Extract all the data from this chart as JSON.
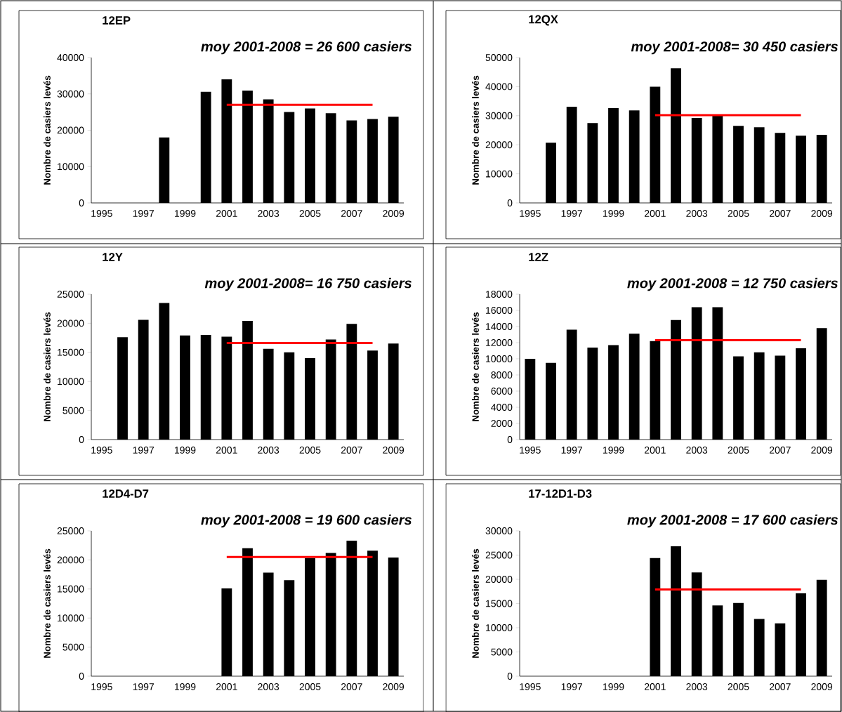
{
  "chart_data": [
    {
      "type": "bar",
      "title": "12EP",
      "ylabel": "Nombre de casiers levés",
      "annotations": [
        "moy 2001-2008 = 26 600 casiers"
      ],
      "categories": [
        "1995",
        null,
        "1997",
        null,
        "1999",
        null,
        "2001",
        null,
        "2003",
        null,
        "2005",
        null,
        "2007",
        null,
        "2009"
      ],
      "ylim": [
        0,
        40000
      ],
      "yticks": [
        0,
        10000,
        20000,
        30000,
        40000
      ],
      "series": [
        {
          "color": "#000000",
          "values": [
            null,
            null,
            null,
            18000,
            null,
            30600,
            34000,
            30900,
            28500,
            25000,
            26000,
            24700,
            22700,
            23100,
            23700
          ]
        },
        {
          "type": "line",
          "color": "#ff0000",
          "values": [
            null,
            null,
            null,
            null,
            null,
            null,
            27000,
            27000,
            27000,
            27000,
            27000,
            27000,
            27000,
            27000,
            null
          ]
        }
      ]
    },
    {
      "type": "bar",
      "title": "12QX",
      "ylabel": "Nombre de casiers levés",
      "annotations": [
        "moy 2001-2008= 30 450 casiers"
      ],
      "categories": [
        "1995",
        null,
        "1997",
        null,
        "1999",
        null,
        "2001",
        null,
        "2003",
        null,
        "2005",
        null,
        "2007",
        null,
        "2009"
      ],
      "ylim": [
        0,
        50000
      ],
      "yticks": [
        0,
        10000,
        20000,
        30000,
        40000,
        50000
      ],
      "series": [
        {
          "color": "#000000",
          "values": [
            null,
            20700,
            33100,
            27500,
            32600,
            31800,
            40000,
            46300,
            29200,
            30000,
            26500,
            26000,
            24100,
            23100,
            23400
          ]
        },
        {
          "type": "line",
          "color": "#ff0000",
          "values": [
            null,
            null,
            null,
            null,
            null,
            null,
            30200,
            30200,
            30200,
            30200,
            30200,
            30200,
            30200,
            30200,
            null
          ]
        }
      ]
    },
    {
      "type": "bar",
      "title": "12Y",
      "ylabel": "Nombre de casiers levés",
      "annotations": [
        "moy 2001-2008= 16 750 casiers"
      ],
      "categories": [
        "1995",
        null,
        "1997",
        null,
        "1999",
        null,
        "2001",
        null,
        "2003",
        null,
        "2005",
        null,
        "2007",
        null,
        "2009"
      ],
      "ylim": [
        0,
        25000
      ],
      "yticks": [
        0,
        5000,
        10000,
        15000,
        20000,
        25000
      ],
      "series": [
        {
          "color": "#000000",
          "values": [
            null,
            17600,
            20600,
            23500,
            17900,
            18000,
            17700,
            20400,
            15600,
            15000,
            14000,
            17200,
            19900,
            15300,
            16500
          ]
        },
        {
          "type": "line",
          "color": "#ff0000",
          "values": [
            null,
            null,
            null,
            null,
            null,
            null,
            16600,
            16600,
            16600,
            16600,
            16600,
            16600,
            16600,
            16600,
            null
          ]
        }
      ]
    },
    {
      "type": "bar",
      "title": "12Z",
      "ylabel": "Nombre de casiers levés",
      "annotations": [
        "moy 2001-2008 = 12 750 casiers"
      ],
      "categories": [
        "1995",
        null,
        "1997",
        null,
        "1999",
        null,
        "2001",
        null,
        "2003",
        null,
        "2005",
        null,
        "2007",
        null,
        "2009"
      ],
      "ylim": [
        0,
        18000
      ],
      "yticks": [
        0,
        2000,
        4000,
        6000,
        8000,
        10000,
        12000,
        14000,
        16000,
        18000
      ],
      "series": [
        {
          "color": "#000000",
          "values": [
            10000,
            9500,
            13600,
            11400,
            11700,
            13100,
            12200,
            14800,
            16400,
            16400,
            10300,
            10800,
            10400,
            11300,
            13800
          ]
        },
        {
          "type": "line",
          "color": "#ff0000",
          "values": [
            null,
            null,
            null,
            null,
            null,
            null,
            12300,
            12300,
            12300,
            12300,
            12300,
            12300,
            12300,
            12300,
            null
          ]
        }
      ]
    },
    {
      "type": "bar",
      "title": "12D4-D7",
      "ylabel": "Nombre de casiers levés",
      "annotations": [
        "moy 2001-2008 = 19 600 casiers"
      ],
      "categories": [
        "1995",
        null,
        "1997",
        null,
        "1999",
        null,
        "2001",
        null,
        "2003",
        null,
        "2005",
        null,
        "2007",
        null,
        "2009"
      ],
      "ylim": [
        0,
        25000
      ],
      "yticks": [
        0,
        5000,
        10000,
        15000,
        20000,
        25000
      ],
      "series": [
        {
          "color": "#000000",
          "values": [
            null,
            null,
            null,
            null,
            null,
            null,
            15100,
            22000,
            17800,
            16500,
            20300,
            21200,
            23300,
            21600,
            20400
          ]
        },
        {
          "type": "line",
          "color": "#ff0000",
          "values": [
            null,
            null,
            null,
            null,
            null,
            null,
            20500,
            20500,
            20500,
            20500,
            20500,
            20500,
            20500,
            20500,
            null
          ]
        }
      ]
    },
    {
      "type": "bar",
      "title": "17-12D1-D3",
      "ylabel": "Nombre de casiers levés",
      "annotations": [
        "moy 2001-2008 = 17 600 casiers"
      ],
      "categories": [
        "1995",
        null,
        "1997",
        null,
        "1999",
        null,
        "2001",
        null,
        "2003",
        null,
        "2005",
        null,
        "2007",
        null,
        "2009"
      ],
      "ylim": [
        0,
        30000
      ],
      "yticks": [
        0,
        5000,
        10000,
        15000,
        20000,
        25000,
        30000
      ],
      "series": [
        {
          "color": "#000000",
          "values": [
            null,
            null,
            null,
            null,
            null,
            null,
            24400,
            26800,
            21400,
            14600,
            15100,
            11800,
            10900,
            17100,
            19900
          ]
        },
        {
          "type": "line",
          "color": "#ff0000",
          "values": [
            null,
            null,
            null,
            null,
            null,
            null,
            17900,
            17900,
            17900,
            17900,
            17900,
            17900,
            17900,
            17900,
            null
          ]
        }
      ]
    }
  ]
}
